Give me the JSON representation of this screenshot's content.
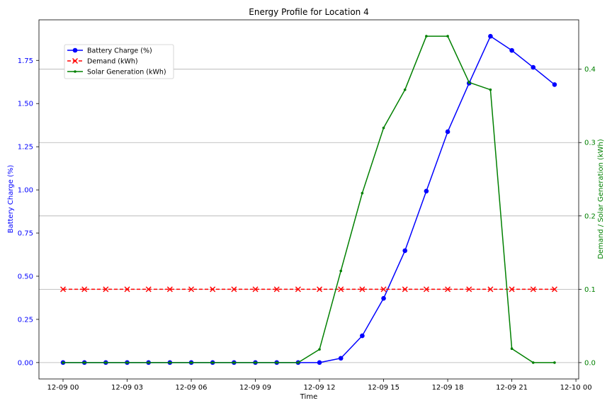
{
  "chart_data": {
    "type": "line",
    "title": "Energy Profile for Location 4",
    "xlabel": "Time",
    "ylabel_left": "Battery Charge (%)",
    "ylabel_right": "Demand / Solar Generation (kWh)",
    "x": [
      "12-09 00",
      "12-09 01",
      "12-09 02",
      "12-09 03",
      "12-09 04",
      "12-09 05",
      "12-09 06",
      "12-09 07",
      "12-09 08",
      "12-09 09",
      "12-09 10",
      "12-09 11",
      "12-09 12",
      "12-09 13",
      "12-09 14",
      "12-09 15",
      "12-09 16",
      "12-09 17",
      "12-09 18",
      "12-09 19",
      "12-09 20",
      "12-09 21",
      "12-09 22",
      "12-09 23"
    ],
    "x_ticks": [
      "12-09 00",
      "12-09 03",
      "12-09 06",
      "12-09 09",
      "12-09 12",
      "12-09 15",
      "12-09 18",
      "12-09 21",
      "12-10 00"
    ],
    "ylim_left": [
      -0.095,
      1.985
    ],
    "yticks_left": [
      "0.00",
      "0.25",
      "0.50",
      "0.75",
      "1.00",
      "1.25",
      "1.50",
      "1.75"
    ],
    "ylim_right": [
      -0.0223,
      0.4673
    ],
    "yticks_right": [
      "0.0",
      "0.1",
      "0.2",
      "0.3",
      "0.4"
    ],
    "grid": "horizontal, right axis",
    "legend_position": "upper-left",
    "colors": {
      "left_axis": "#0000ff",
      "right_axis": "#008000",
      "grid": "#b0b0b0"
    },
    "series": [
      {
        "name": "Battery Charge (%)",
        "axis": "left",
        "color": "#0000ff",
        "linestyle": "solid",
        "marker": "circle",
        "values": [
          0,
          0,
          0,
          0,
          0,
          0,
          0,
          0,
          0,
          0,
          0,
          0,
          0,
          0.025,
          0.155,
          0.372,
          0.648,
          0.993,
          1.337,
          1.618,
          1.89,
          1.808,
          1.71,
          1.61
        ]
      },
      {
        "name": "Demand (kWh)",
        "axis": "right",
        "color": "#ff0000",
        "linestyle": "dashed",
        "marker": "x",
        "values": [
          0.1,
          0.1,
          0.1,
          0.1,
          0.1,
          0.1,
          0.1,
          0.1,
          0.1,
          0.1,
          0.1,
          0.1,
          0.1,
          0.1,
          0.1,
          0.1,
          0.1,
          0.1,
          0.1,
          0.1,
          0.1,
          0.1,
          0.1,
          0.1
        ]
      },
      {
        "name": "Solar Generation (kWh)",
        "axis": "right",
        "color": "#008000",
        "linestyle": "solid",
        "marker": "point",
        "values": [
          0,
          0,
          0,
          0,
          0,
          0,
          0,
          0,
          0,
          0,
          0,
          0,
          0.018,
          0.125,
          0.231,
          0.32,
          0.372,
          0.445,
          0.445,
          0.382,
          0.372,
          0.019,
          0,
          0
        ]
      }
    ]
  }
}
